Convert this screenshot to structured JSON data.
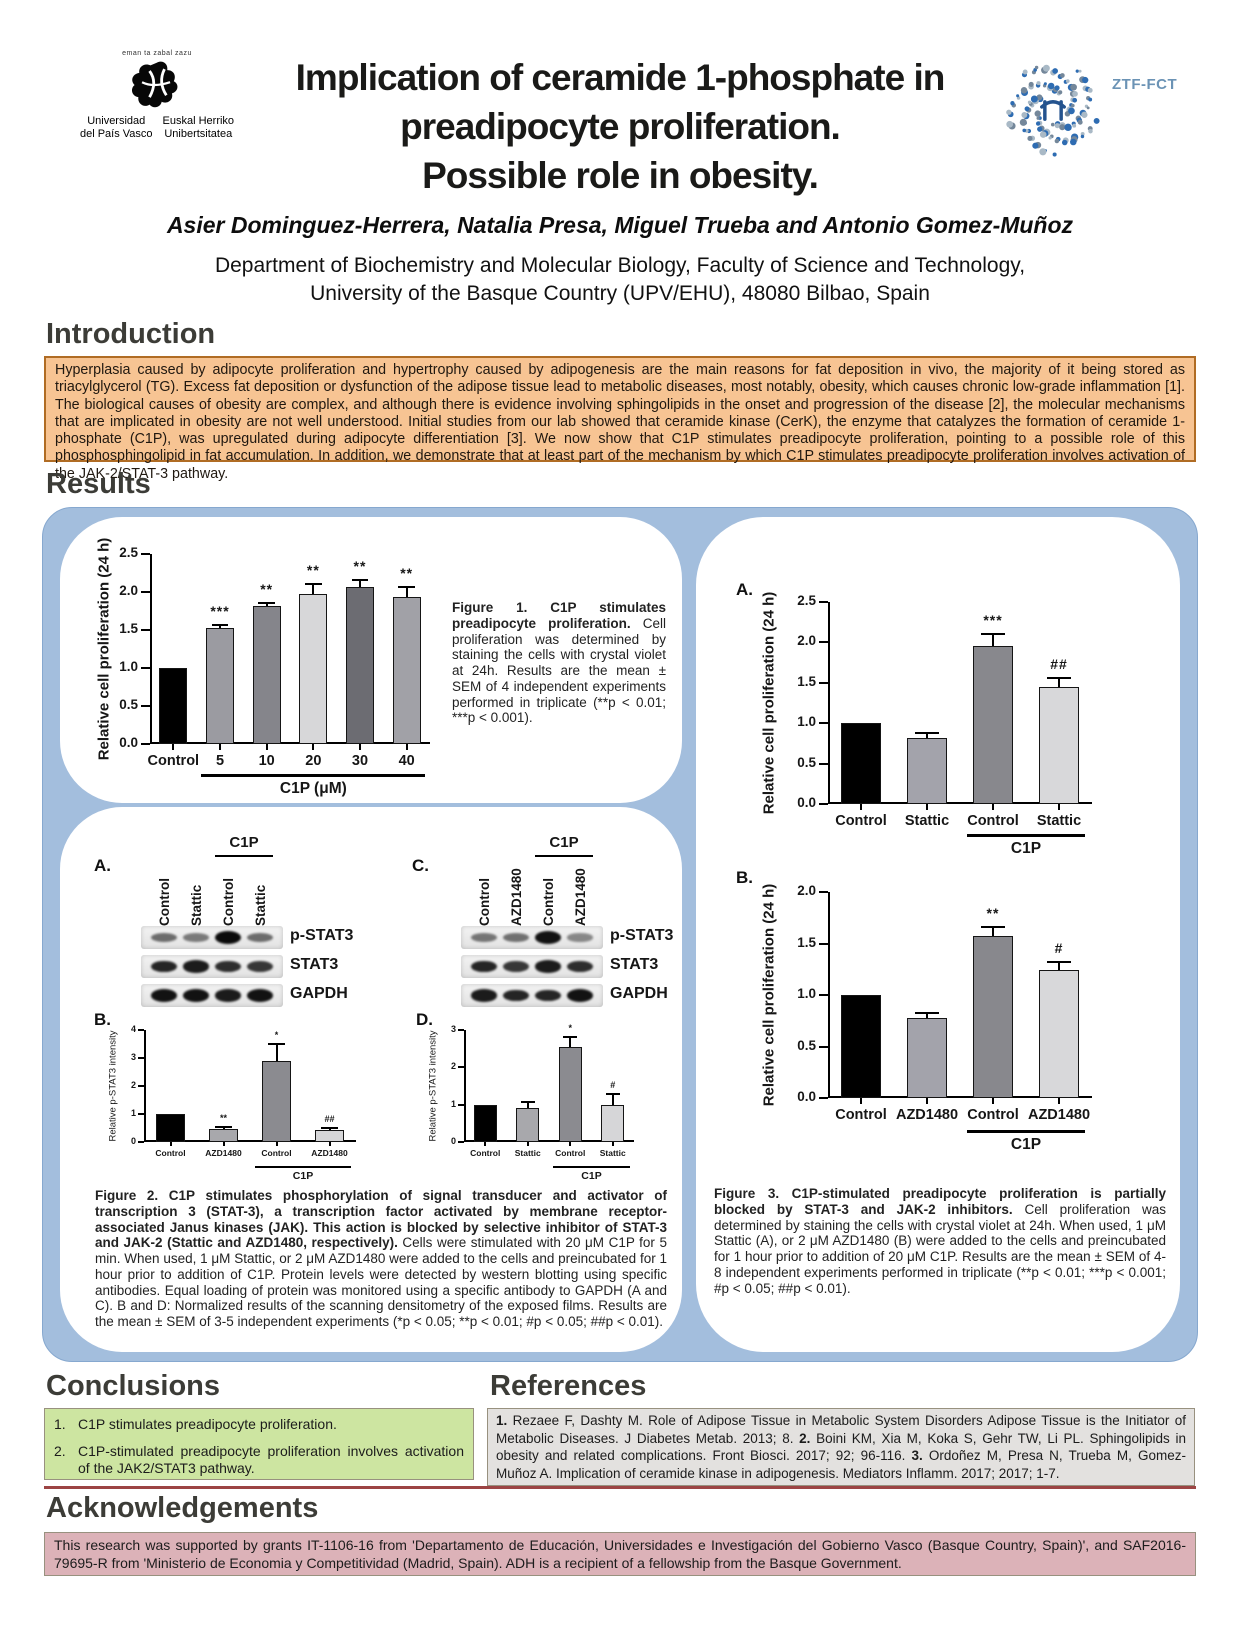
{
  "header": {
    "upv": {
      "motto": "eman ta zabal zazu",
      "es1": "Universidad",
      "es2": "del País Vasco",
      "eu1": "Euskal Herriko",
      "eu2": "Unibertsitatea"
    },
    "title_line1": "Implication of ceramide 1-phosphate in",
    "title_line2": "preadipocyte proliferation.",
    "title_line3": "Possible role in obesity.",
    "ztf_label": "ZTF-FCT",
    "authors": "Asier Dominguez-Herrera, Natalia Presa, Miguel Trueba and Antonio Gomez-Muñoz",
    "affiliation_line1": "Department of Biochemistry and Molecular Biology, Faculty of Science and Technology,",
    "affiliation_line2": "University of the Basque Country (UPV/EHU), 48080 Bilbao, Spain"
  },
  "sections": {
    "introduction": {
      "title": "Introduction",
      "body": "Hyperplasia caused by adipocyte proliferation and hypertrophy caused by adipogenesis are the main reasons for fat deposition in vivo, the majority of it being stored as triacylglycerol (TG). Excess fat deposition or dysfunction of the adipose tissue lead to metabolic diseases, most notably, obesity, which causes chronic low-grade inflammation [1]. The biological causes of obesity are complex, and although there is evidence involving sphingolipids in the onset and progression of the disease [2], the molecular mechanisms that are implicated in obesity are not well understood. Initial studies from our lab showed that ceramide kinase (CerK), the enzyme that catalyzes the formation of ceramide 1-phosphate (C1P), was upregulated during adipocyte differentiation [3]. We now show that C1P stimulates preadipocyte proliferation, pointing to a possible role of this phosphosphingolipid in fat accumulation. In addition, we demonstrate that at least part of the mechanism by which C1P stimulates preadipocyte proliferation involves activation of the JAK-2/STAT-3 pathway."
    },
    "results": {
      "title": "Results"
    },
    "conclusions": {
      "title": "Conclusions",
      "items": [
        {
          "n": "1.",
          "text": "C1P stimulates preadipocyte proliferation."
        },
        {
          "n": "2.",
          "text": "C1P-stimulated preadipocyte proliferation involves activation of the JAK2/STAT3 pathway."
        }
      ]
    },
    "references": {
      "title": "References",
      "items": [
        {
          "n": "1.",
          "text": "Rezaee F, Dashty M. Role of Adipose Tissue in Metabolic System Disorders Adipose Tissue is the Initiator of Metabolic Diseases. J Diabetes Metab. 2013; 8."
        },
        {
          "n": "2.",
          "text": "Boini KM, Xia M, Koka S, Gehr TW, Li PL. Sphingolipids in obesity and related complications. Front Biosci. 2017; 92; 96-116."
        },
        {
          "n": "3.",
          "text": "Ordoñez M, Presa N, Trueba M, Gomez-Muñoz A. Implication of ceramide kinase in adipogenesis. Mediators Inflamm. 2017; 2017; 1-7."
        }
      ]
    },
    "acknowledgements": {
      "title": "Acknowledgements",
      "body": "This research was supported by grants IT-1106-16 from 'Departamento de Educación, Universidades e Investigación del Gobierno Vasco (Basque Country, Spain)', and SAF2016-79695-R from 'Ministerio de Economia y Competitividad (Madrid, Spain). ADH is a recipient of a fellowship from the Basque Government."
    }
  },
  "figure1": {
    "caption_bold": "Figure 1. C1P stimulates preadipocyte proliferation.",
    "caption_rest": "Cell proliferation was determined by staining the cells with crystal violet at 24h. Results are the mean ± SEM of 4 independent experiments performed in triplicate (**p < 0.01; ***p < 0.001)."
  },
  "figure2": {
    "panel_a": "A.",
    "panel_b": "B.",
    "panel_c": "C.",
    "panel_d": "D.",
    "caption_bold": "Figure 2. C1P stimulates phosphorylation of signal transducer and activator of transcription 3 (STAT-3), a transcription factor activated by membrane receptor-associated Janus kinases (JAK). This action is blocked by selective inhibitor of STAT-3 and JAK-2 (Stattic and AZD1480, respectively).",
    "caption_rest": "Cells were stimulated with 20 μM C1P for 5 min. When used, 1 μM Stattic, or 2 μM AZD1480 were added to the cells and preincubated for 1 hour prior to addition of C1P. Protein levels were detected by western blotting using specific antibodies. Equal loading of protein was monitored using a specific antibody to GAPDH (A and C). B and D: Normalized results of the scanning densitometry of the exposed films. Results are the mean ± SEM of 3-5 independent experiments (*p < 0.05; **p < 0.01; #p < 0.05; ##p < 0.01).",
    "blots": [
      {
        "panel": "A.",
        "lanes": [
          "Control",
          "Stattic",
          "Control",
          "Stattic"
        ],
        "bracket": {
          "from": 2,
          "to": 3,
          "label": "C1P"
        },
        "rows": [
          {
            "label": "p-STAT3",
            "bands": [
              0.45,
              0.38,
              1.0,
              0.45
            ]
          },
          {
            "label": "STAT3",
            "bands": [
              0.85,
              0.9,
              0.8,
              0.75
            ]
          },
          {
            "label": "GAPDH",
            "bands": [
              0.95,
              0.95,
              0.9,
              0.95
            ]
          }
        ]
      },
      {
        "panel": "C.",
        "lanes": [
          "Control",
          "AZD1480",
          "Control",
          "AZD1480"
        ],
        "bracket": {
          "from": 2,
          "to": 3,
          "label": "C1P"
        },
        "rows": [
          {
            "label": "p-STAT3",
            "bands": [
              0.4,
              0.42,
              0.95,
              0.3
            ]
          },
          {
            "label": "STAT3",
            "bands": [
              0.85,
              0.75,
              0.9,
              0.8
            ]
          },
          {
            "label": "GAPDH",
            "bands": [
              0.9,
              0.85,
              0.85,
              0.95
            ]
          }
        ]
      }
    ]
  },
  "figure3": {
    "panel_a": "A.",
    "panel_b": "B.",
    "caption_bold": "Figure 3. C1P-stimulated preadipocyte proliferation is partially blocked by STAT-3 and JAK-2 inhibitors.",
    "caption_rest": "Cell proliferation was determined by staining the cells with crystal violet at 24h. When used, 1 μM Stattic (A), or 2 μM AZD1480 (B) were added to the cells and preincubated for 1 hour prior to addition of 20 μM C1P. Results are the mean ± SEM of 4-8 independent experiments performed in triplicate (**p < 0.01; ***p < 0.001; #p < 0.05; ##p < 0.01)."
  },
  "chart_data": [
    {
      "id": "figure1",
      "type": "bar",
      "title": "",
      "xlabel": "C1P (μM)",
      "ylabel": "Relative cell proliferation (24 h)",
      "ylim": [
        0,
        2.5
      ],
      "yticks": [
        "0.0",
        "0.5",
        "1.0",
        "1.5",
        "2.0",
        "2.5"
      ],
      "categories": [
        "Control",
        "5",
        "10",
        "20",
        "30",
        "40"
      ],
      "values": [
        1.0,
        1.53,
        1.81,
        1.97,
        2.07,
        1.94
      ],
      "errors": [
        0,
        0.03,
        0.05,
        0.13,
        0.09,
        0.13
      ],
      "sig": [
        "",
        "***",
        "**",
        "**",
        "**",
        "**"
      ],
      "colors": [
        "#000000",
        "#9b9ba1",
        "#85858b",
        "#d7d7d9",
        "#6c6c72",
        "#a1a1a7"
      ],
      "bracket": {
        "from": 1,
        "to": 5,
        "label": "C1P (μM)"
      }
    },
    {
      "id": "figure2B",
      "type": "bar",
      "title": "",
      "xlabel": "",
      "ylabel": "Relative p-STAT3 intensity",
      "ylim": [
        0,
        4
      ],
      "yticks": [
        "0",
        "1",
        "2",
        "3",
        "4"
      ],
      "categories": [
        "Control",
        "AZD1480",
        "Control",
        "AZD1480"
      ],
      "values": [
        1.0,
        0.45,
        2.9,
        0.42
      ],
      "errors": [
        0,
        0.1,
        0.6,
        0.08
      ],
      "sig": [
        "",
        "**",
        "*",
        "##"
      ],
      "colors": [
        "#000000",
        "#a8a8ac",
        "#8b8b90",
        "#d6d6d8"
      ],
      "bracket": {
        "from": 2,
        "to": 3,
        "label": "C1P"
      }
    },
    {
      "id": "figure2D",
      "type": "bar",
      "title": "",
      "xlabel": "",
      "ylabel": "Relative p-STAT3 intensity",
      "ylim": [
        0,
        3
      ],
      "yticks": [
        "0",
        "1",
        "2",
        "3"
      ],
      "categories": [
        "Control",
        "Stattic",
        "Control",
        "Stattic"
      ],
      "values": [
        1.0,
        0.9,
        2.55,
        1.0
      ],
      "errors": [
        0,
        0.17,
        0.27,
        0.28
      ],
      "sig": [
        "",
        "",
        "*",
        "#"
      ],
      "colors": [
        "#000000",
        "#a8a8ac",
        "#8b8b90",
        "#d6d6d8"
      ],
      "bracket": {
        "from": 2,
        "to": 3,
        "label": "C1P"
      }
    },
    {
      "id": "figure3A",
      "type": "bar",
      "title": "",
      "xlabel": "",
      "ylabel": "Relative cell proliferation (24 h)",
      "ylim": [
        0,
        2.5
      ],
      "yticks": [
        "0.0",
        "0.5",
        "1.0",
        "1.5",
        "2.0",
        "2.5"
      ],
      "categories": [
        "Control",
        "Stattic",
        "Control",
        "Stattic"
      ],
      "values": [
        1.0,
        0.82,
        1.95,
        1.45
      ],
      "errors": [
        0,
        0.06,
        0.15,
        0.11
      ],
      "sig": [
        "",
        "",
        "***",
        "##"
      ],
      "colors": [
        "#000000",
        "#a3a3ab",
        "#88888d",
        "#d8d8da"
      ],
      "bracket": {
        "from": 2,
        "to": 3,
        "label": "C1P"
      }
    },
    {
      "id": "figure3B",
      "type": "bar",
      "title": "",
      "xlabel": "",
      "ylabel": "Relative cell proliferation (24 h)",
      "ylim": [
        0,
        2.0
      ],
      "yticks": [
        "0.0",
        "0.5",
        "1.0",
        "1.5",
        "2.0"
      ],
      "categories": [
        "Control",
        "AZD1480",
        "Control",
        "AZD1480"
      ],
      "values": [
        1.0,
        0.78,
        1.57,
        1.24
      ],
      "errors": [
        0,
        0.05,
        0.09,
        0.08
      ],
      "sig": [
        "",
        "",
        "**",
        "#"
      ],
      "colors": [
        "#000000",
        "#a3a3ab",
        "#88888d",
        "#d8d8da"
      ],
      "bracket": {
        "from": 2,
        "to": 3,
        "label": "C1P"
      }
    }
  ],
  "colors": {
    "blue_container": "#a3bedd",
    "intro_bg": "#f7c493",
    "intro_border": "#b06c24",
    "conclusions_bg": "#cde5a1",
    "references_bg": "#e3e1df",
    "acknowledgements_bg": "#dcb2b8",
    "box_border": "#98917f",
    "divider": "#9c4444",
    "section_heading": "#3c3c37",
    "ztf_blue": "#2e6cb2",
    "ztf_text": "#6b93b5"
  }
}
